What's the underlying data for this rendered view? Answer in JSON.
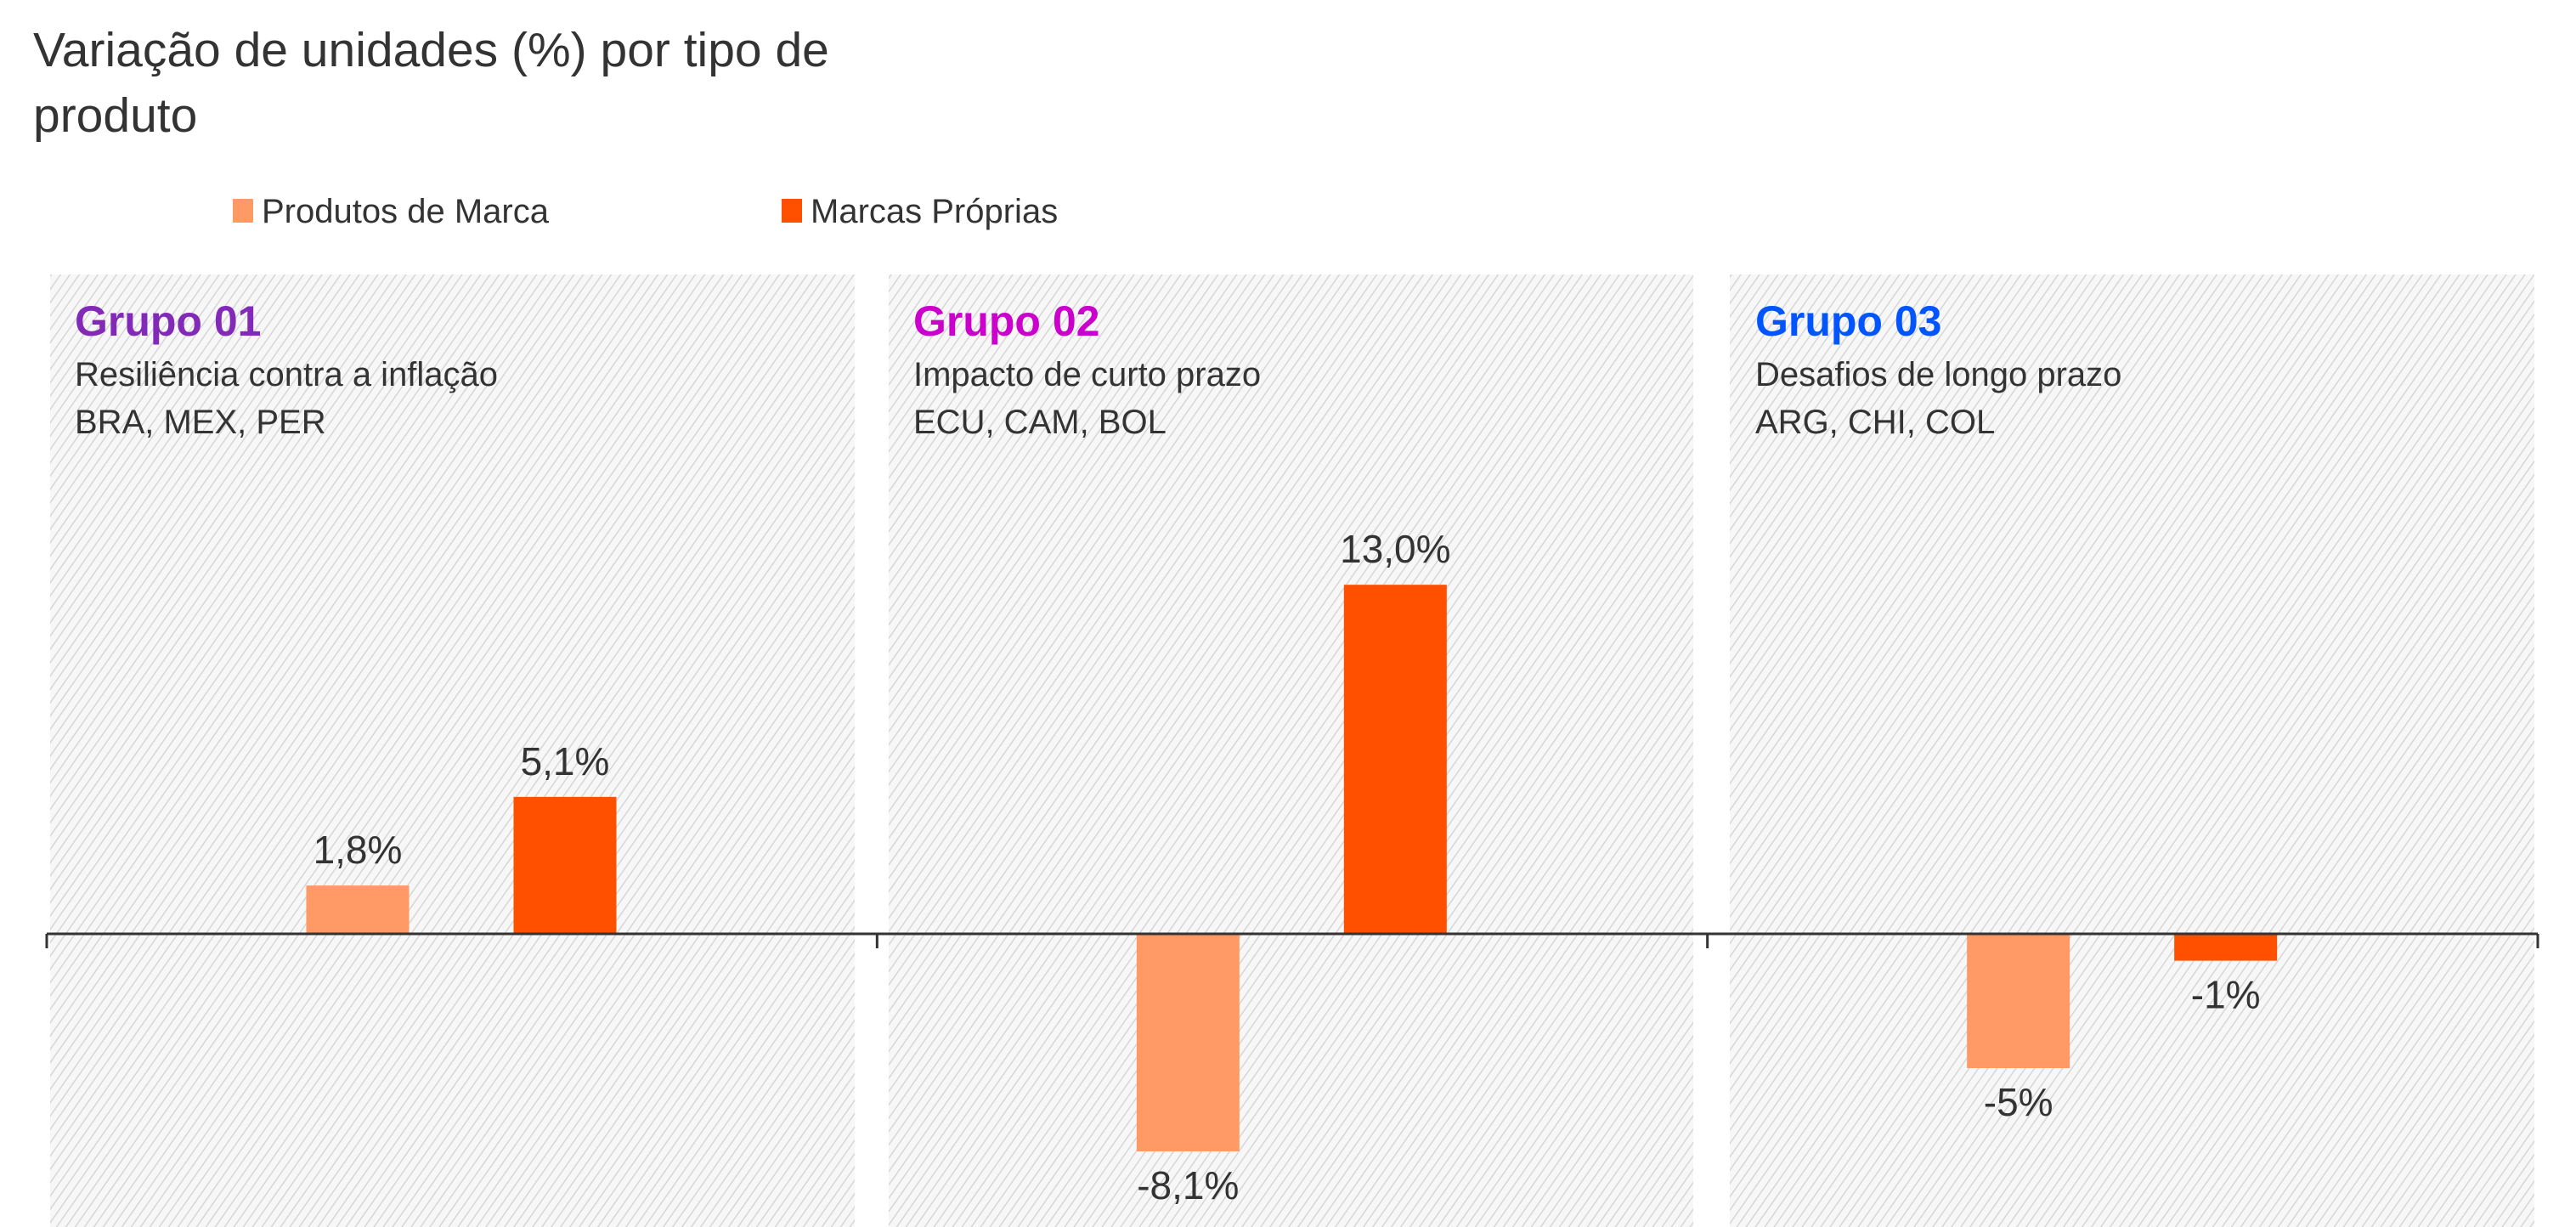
{
  "chart_data": {
    "type": "bar",
    "title": "Variação de unidades (%) por tipo de produto",
    "title_lines": [
      "Variação de unidades (%) por tipo de",
      "produto"
    ],
    "legend": {
      "placement": "top-left"
    },
    "series": [
      {
        "name": "Produtos de Marca",
        "color": "#FF9966",
        "values": [
          1.8,
          -8.1,
          -5
        ],
        "labels": [
          "1,8%",
          "-8,1%",
          "-5%"
        ]
      },
      {
        "name": "Marcas Próprias",
        "color": "#FF5000",
        "values": [
          5.1,
          13.0,
          -1
        ],
        "labels": [
          "5,1%",
          "13,0%",
          "-1%"
        ]
      }
    ],
    "categories": [
      {
        "title": "Grupo 01",
        "color": "#8229B8",
        "subtitle": "Resiliência contra a inflação",
        "countries": "BRA, MEX, PER"
      },
      {
        "title": "Grupo 02",
        "color": "#CC00CC",
        "subtitle": "Impacto de curto prazo",
        "countries": "ECU, CAM, BOL"
      },
      {
        "title": "Grupo 03",
        "color": "#0055FF",
        "subtitle": "Desafios de longo prazo",
        "countries": "ARG, CHI, COL"
      }
    ],
    "ylim": [
      -11,
      13
    ],
    "grid": false,
    "xlabel": "",
    "ylabel": ""
  }
}
